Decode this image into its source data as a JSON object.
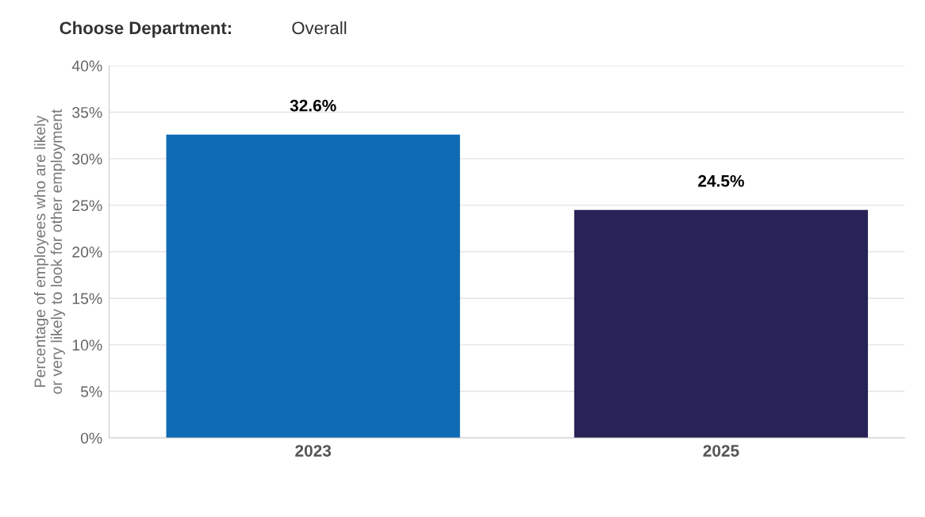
{
  "chart_data": {
    "type": "bar",
    "title": "Choose Department:",
    "subtitle": "Overall",
    "ylabel": "Percentage of employees who are likely\nor very likely to look for other employment",
    "categories": [
      "2023",
      "2025"
    ],
    "values": [
      32.6,
      24.5
    ],
    "colors": [
      "#0f6ab4",
      "#272356"
    ],
    "value_labels": [
      "32.6%",
      "24.5%"
    ],
    "ylim": [
      0,
      40
    ],
    "yticks": [
      {
        "value": 0,
        "label": "0%"
      },
      {
        "value": 5,
        "label": "5%"
      },
      {
        "value": 10,
        "label": "10%"
      },
      {
        "value": 15,
        "label": "15%"
      },
      {
        "value": 20,
        "label": "20%"
      },
      {
        "value": 25,
        "label": "25%"
      },
      {
        "value": 30,
        "label": "30%"
      },
      {
        "value": 35,
        "label": "35%"
      },
      {
        "value": 40,
        "label": "40%"
      }
    ],
    "grid": "y",
    "legend": false
  }
}
